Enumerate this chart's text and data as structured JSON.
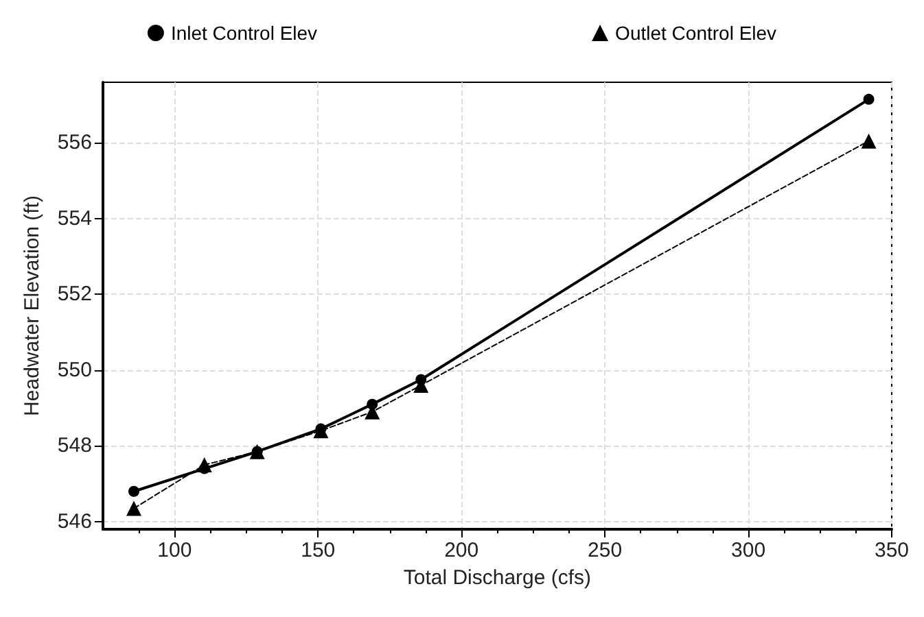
{
  "chart_data": {
    "type": "line",
    "xlabel": "Total Discharge (cfs)",
    "ylabel": "Headwater Elevation (ft)",
    "x": [
      85.8,
      110.4,
      128.8,
      151,
      168.9,
      185.9,
      342
    ],
    "series": [
      {
        "name": "Inlet Control Elev",
        "color": "#000000",
        "marker": "circle",
        "line_style": "solid",
        "values": [
          546.8,
          547.4,
          547.85,
          548.45,
          549.1,
          549.75,
          557.15
        ]
      },
      {
        "name": "Outlet Control Elev",
        "color": "#000000",
        "marker": "triangle",
        "line_style": "dashed",
        "values": [
          546.35,
          547.5,
          547.85,
          548.4,
          548.9,
          549.6,
          556.05
        ]
      }
    ],
    "xlim": [
      75,
      350
    ],
    "xticks": [
      100,
      150,
      200,
      250,
      300,
      350
    ],
    "ylim": [
      545.8,
      557.6
    ],
    "yticks": [
      546,
      548,
      550,
      552,
      554,
      556
    ],
    "grid": true,
    "legend": "top"
  }
}
